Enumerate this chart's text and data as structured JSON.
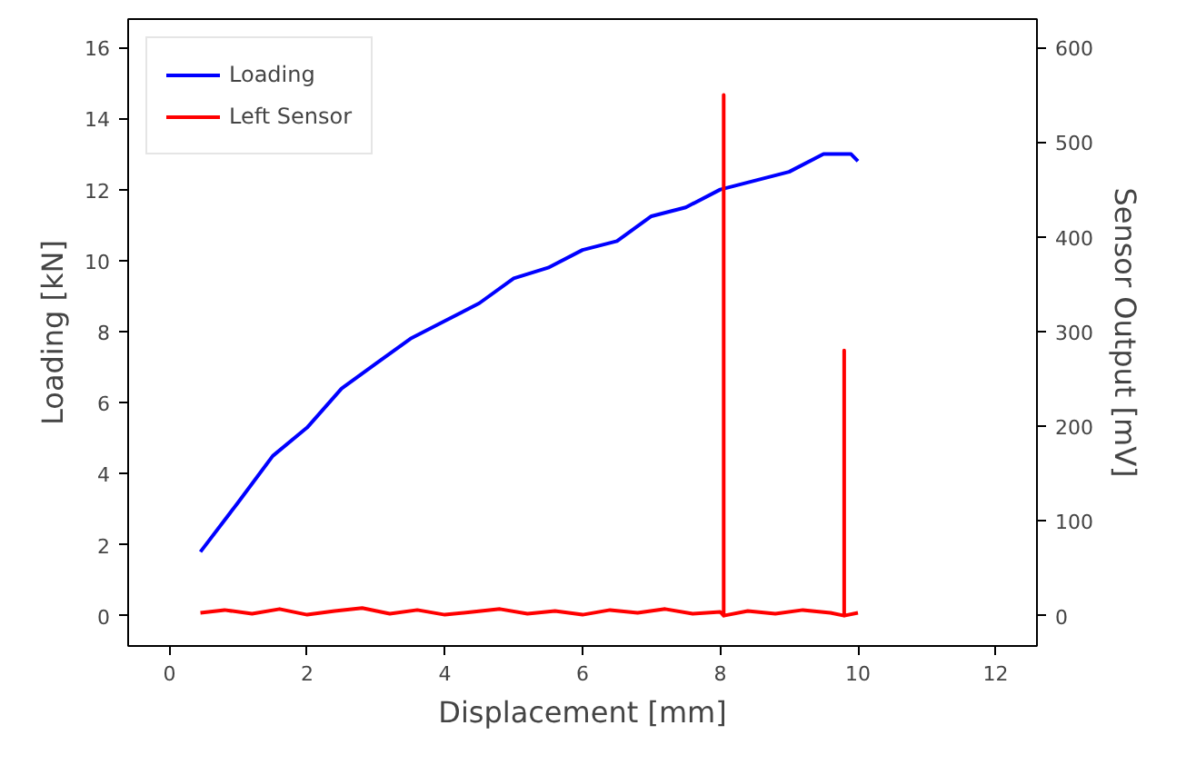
{
  "chart_data": {
    "type": "line",
    "xlabel": "Displacement [mm]",
    "ylabel": "Loading [kN]",
    "y2label": "Sensor Output [mV]",
    "xlim": [
      -0.6,
      12.6
    ],
    "xticks": [
      0,
      2,
      4,
      6,
      8,
      10,
      12
    ],
    "ylim": [
      -0.85,
      16.8
    ],
    "yticks": [
      0,
      2,
      4,
      6,
      8,
      10,
      12,
      14,
      16
    ],
    "y2lim": [
      -32,
      630
    ],
    "y2ticks": [
      0,
      100,
      200,
      300,
      400,
      500,
      600
    ],
    "grid": false,
    "legend": "top left",
    "line_style": "solid",
    "series": [
      {
        "name": "Loading",
        "color": "#0000ff",
        "x": [
          0.45,
          1.0,
          1.5,
          2.0,
          2.5,
          3.0,
          3.5,
          4.0,
          4.5,
          5.0,
          5.5,
          6.0,
          6.5,
          7.0,
          7.5,
          8.0,
          8.5,
          9.0,
          9.5,
          9.9,
          10.0
        ],
        "values": [
          1.8,
          3.2,
          4.5,
          5.3,
          6.4,
          7.1,
          7.8,
          8.3,
          8.8,
          9.5,
          9.8,
          10.3,
          10.55,
          11.25,
          11.5,
          12.0,
          12.25,
          12.5,
          13.0,
          13.0,
          12.8
        ]
      },
      {
        "name": "Left Sensor",
        "color": "#ff0000",
        "axis": "y2",
        "x": [
          0.45,
          0.8,
          1.2,
          1.6,
          2.0,
          2.4,
          2.8,
          3.2,
          3.6,
          4.0,
          4.4,
          4.8,
          5.2,
          5.6,
          6.0,
          6.4,
          6.8,
          7.2,
          7.6,
          8.0,
          8.05,
          8.05,
          8.05,
          8.4,
          8.8,
          9.2,
          9.6,
          9.8,
          9.8,
          9.8,
          10.0
        ],
        "values": [
          3,
          6,
          2,
          7,
          1,
          5,
          8,
          2,
          6,
          1,
          4,
          7,
          2,
          5,
          1,
          6,
          3,
          7,
          2,
          4,
          0,
          550,
          0,
          5,
          2,
          6,
          3,
          0,
          280,
          0,
          3
        ]
      }
    ]
  }
}
